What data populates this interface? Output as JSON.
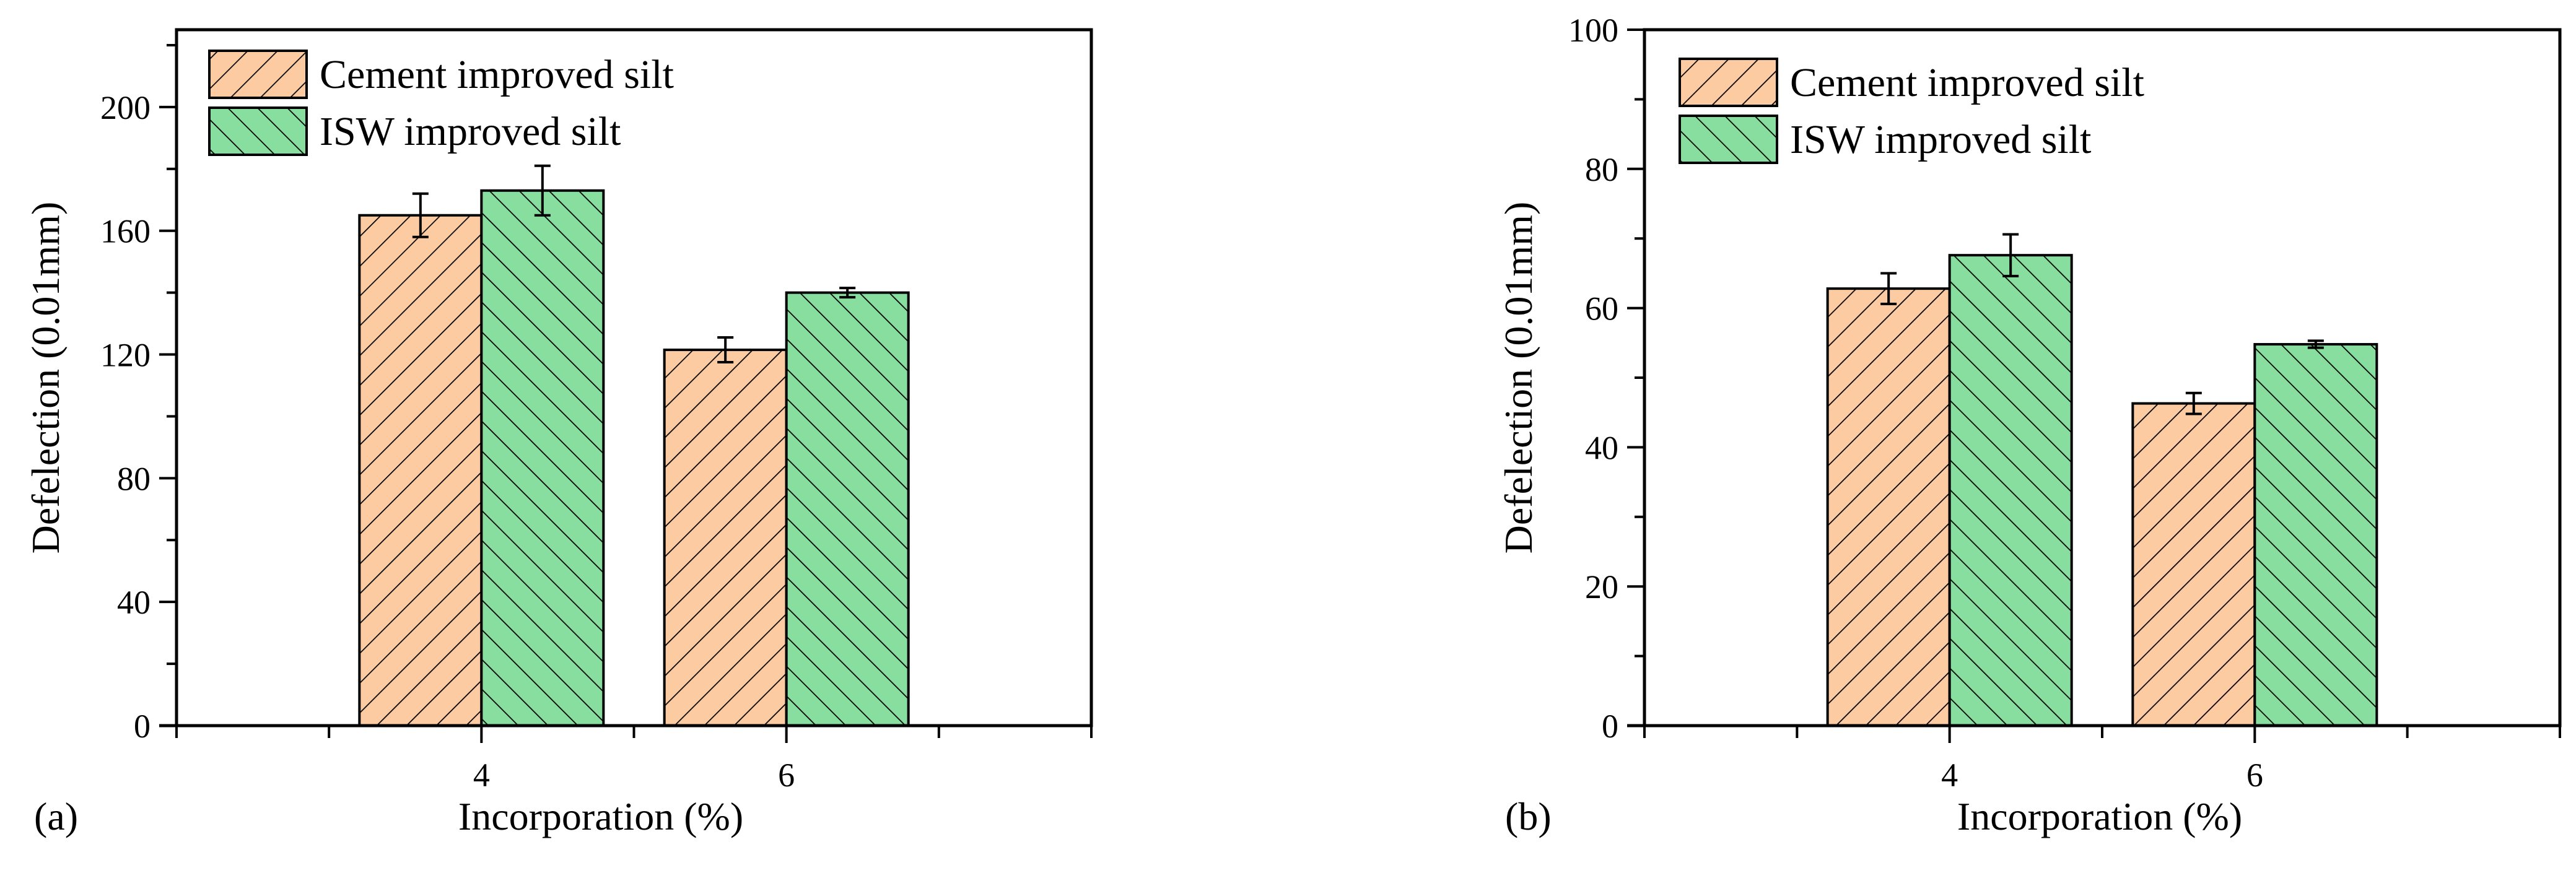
{
  "figure": {
    "panels": [
      "(a)",
      "(b)"
    ]
  },
  "colors": {
    "cement": "#FDCBA2",
    "isw": "#87DE9E",
    "outline": "#000000"
  },
  "chart_data": [
    {
      "type": "bar",
      "panel_label": "(a)",
      "categories": [
        "4",
        "6"
      ],
      "series": [
        {
          "name": "Cement improved silt",
          "values": [
            165,
            121.5
          ],
          "errors": [
            7,
            4
          ]
        },
        {
          "name": "ISW improved silt",
          "values": [
            173,
            140
          ],
          "errors": [
            8,
            1.5
          ]
        }
      ],
      "xlabel": "Incorporation (%)",
      "ylabel": "Defelection (0.01mm)",
      "ylim": [
        0,
        225
      ],
      "yticks": [
        0,
        40,
        80,
        120,
        160,
        200
      ],
      "grid": false,
      "legend_position": "top-left"
    },
    {
      "type": "bar",
      "panel_label": "(b)",
      "categories": [
        "4",
        "6"
      ],
      "series": [
        {
          "name": "Cement improved silt",
          "values": [
            62.8,
            46.3
          ],
          "errors": [
            2.2,
            1.5
          ]
        },
        {
          "name": "ISW improved silt",
          "values": [
            67.6,
            54.8
          ],
          "errors": [
            3,
            0.5
          ]
        }
      ],
      "xlabel": "Incorporation (%)",
      "ylabel": "Defelection (0.01mm)",
      "ylim": [
        0,
        100
      ],
      "yticks": [
        0,
        20,
        40,
        60,
        80,
        100
      ],
      "grid": false,
      "legend_position": "top-left"
    }
  ]
}
